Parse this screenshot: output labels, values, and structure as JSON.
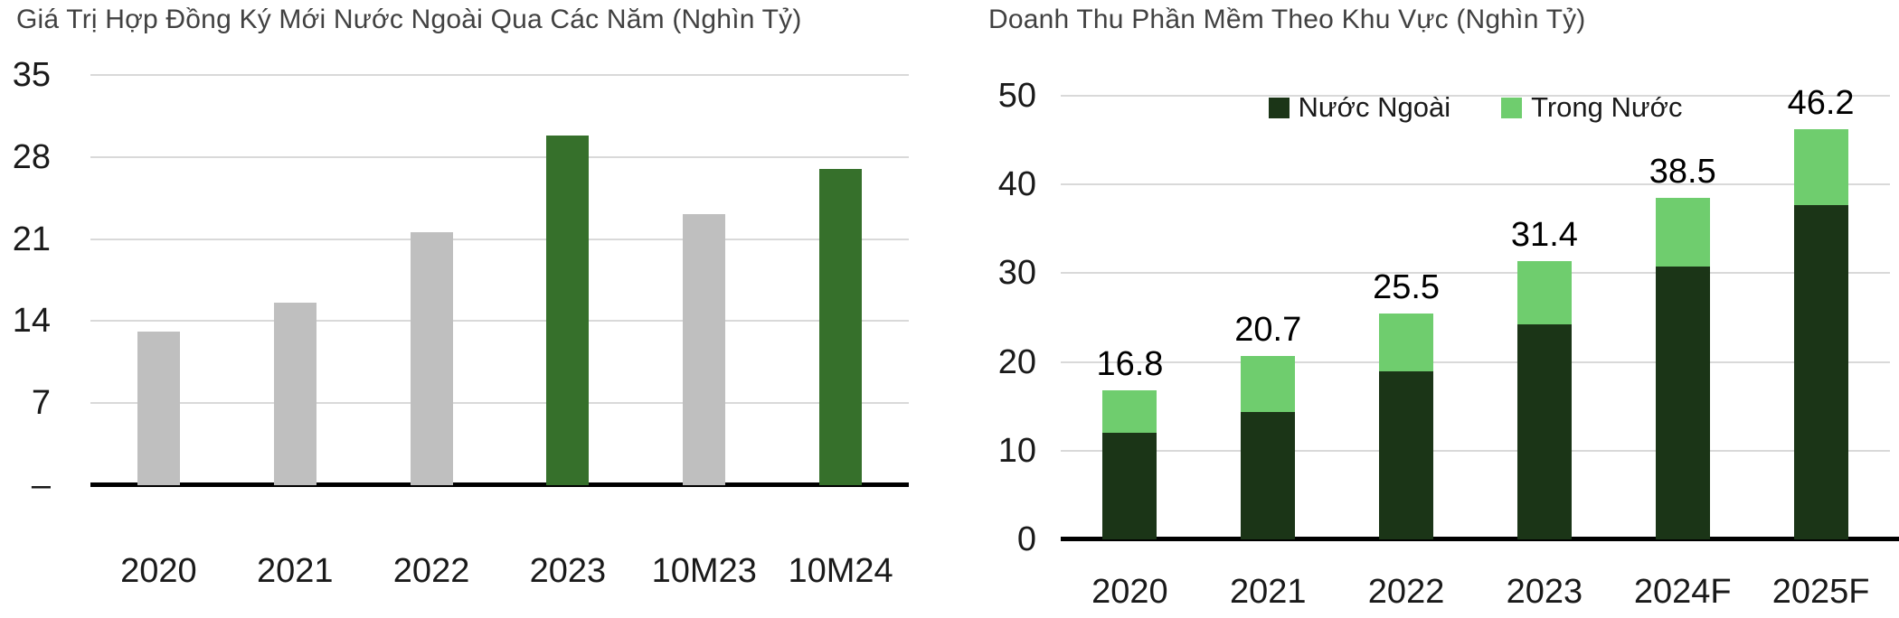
{
  "colors": {
    "grid": "#D9D9D9",
    "axis_line": "#000000",
    "tick_text": "#1A1A1A",
    "title_text": "#414141",
    "gray_bar": "#BFBFBF",
    "green_bar": "#36702B",
    "dark_green": "#1B3517",
    "light_green": "#6FCD6E"
  },
  "charts": [
    {
      "title": "Giá Trị Hợp Đồng Ký Mới Nước Ngoài Qua Các Năm (Nghìn Tỷ)",
      "chart_data": {
        "type": "bar",
        "categories": [
          "2020",
          "2021",
          "2022",
          "2023",
          "10M23",
          "10M24"
        ],
        "values": [
          13.1,
          15.6,
          21.6,
          29.8,
          23.1,
          27.0
        ],
        "bar_colors": [
          "#BFBFBF",
          "#BFBFBF",
          "#BFBFBF",
          "#36702B",
          "#BFBFBF",
          "#36702B"
        ],
        "title": "Giá Trị Hợp Đồng Ký Mới Nước Ngoài Qua Các Năm (Nghìn Tỷ)",
        "xlabel": "",
        "ylabel": "",
        "ylim": [
          0,
          35
        ],
        "grid": true,
        "yticks": [
          {
            "value": 35,
            "label": "35"
          },
          {
            "value": 28,
            "label": "28"
          },
          {
            "value": 21,
            "label": "21"
          },
          {
            "value": 14,
            "label": "14"
          },
          {
            "value": 7,
            "label": "7"
          },
          {
            "value": 0,
            "label": "–"
          }
        ]
      }
    },
    {
      "title": "Doanh Thu Phần Mềm Theo Khu Vực (Nghìn Tỷ)",
      "chart_data": {
        "type": "bar",
        "stacked": true,
        "categories": [
          "2020",
          "2021",
          "2022",
          "2023",
          "2024F",
          "2025F"
        ],
        "series": [
          {
            "name": "Nước Ngoài",
            "color": "#1B3517",
            "values": [
              12.0,
              14.4,
              18.9,
              24.2,
              30.8,
              37.7
            ]
          },
          {
            "name": "Trong Nước",
            "color": "#6FCD6E",
            "values": [
              4.8,
              6.3,
              6.6,
              7.2,
              7.7,
              8.5
            ]
          }
        ],
        "total_labels": [
          "16.8",
          "20.7",
          "25.5",
          "31.4",
          "38.5",
          "46.2"
        ],
        "title": "Doanh Thu Phần Mềm Theo Khu Vực (Nghìn Tỷ)",
        "xlabel": "",
        "ylabel": "",
        "ylim": [
          0,
          50
        ],
        "grid": true,
        "legend_position": "top-center",
        "yticks": [
          {
            "value": 50,
            "label": "50"
          },
          {
            "value": 40,
            "label": "40"
          },
          {
            "value": 30,
            "label": "30"
          },
          {
            "value": 20,
            "label": "20"
          },
          {
            "value": 10,
            "label": "10"
          },
          {
            "value": 0,
            "label": "0"
          }
        ]
      }
    }
  ]
}
